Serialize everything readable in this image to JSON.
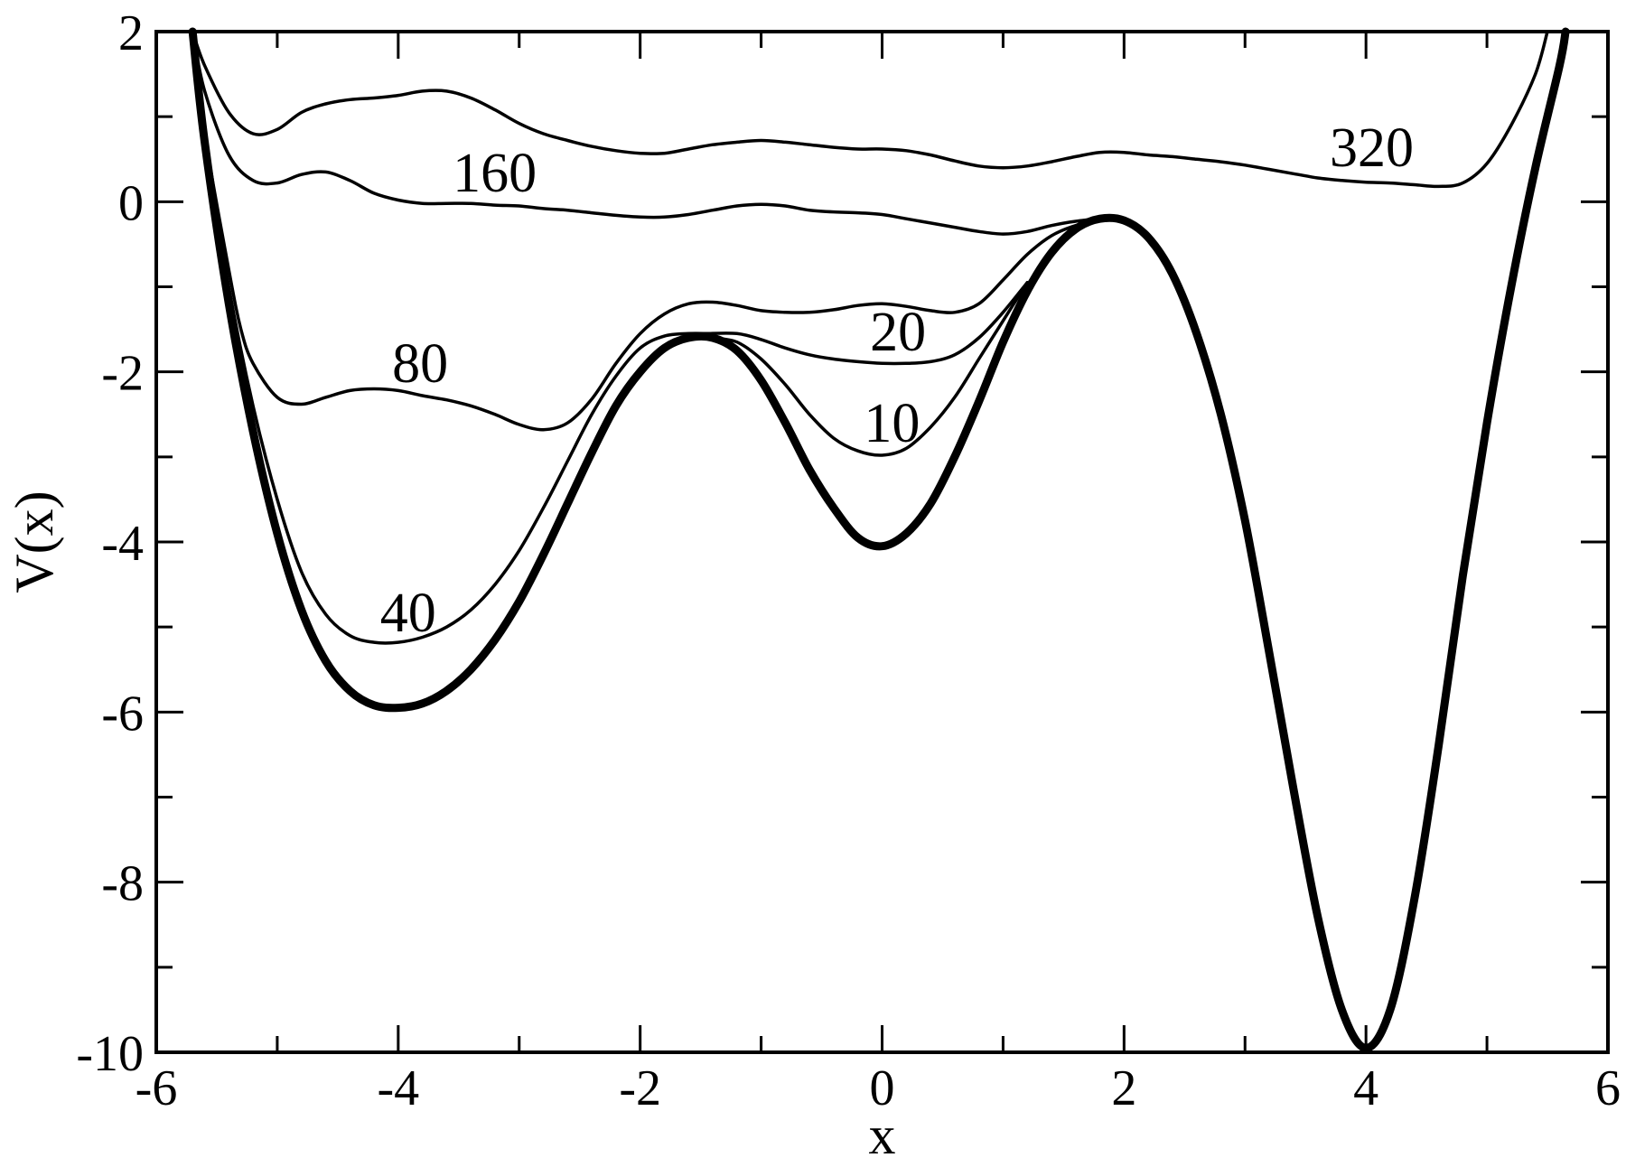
{
  "chart_data": {
    "type": "line",
    "title": "",
    "xlabel": "x",
    "ylabel": "V(x)",
    "xlim": [
      -6,
      6
    ],
    "ylim": [
      -10,
      2
    ],
    "x_ticks": [
      "-6",
      "-4",
      "-2",
      "0",
      "2",
      "4",
      "6"
    ],
    "y_ticks": [
      "2",
      "0",
      "-2",
      "-4",
      "-6",
      "-8",
      "-10"
    ],
    "grid": false,
    "legend": "none",
    "line_color": "#000000",
    "series": [
      {
        "name": "",
        "bold": true,
        "points": [
          [
            -5.7,
            2.0
          ],
          [
            -5.6,
            0.7
          ],
          [
            -5.4,
            -1.2
          ],
          [
            -5.2,
            -2.7
          ],
          [
            -5.0,
            -3.9
          ],
          [
            -4.8,
            -4.8
          ],
          [
            -4.6,
            -5.4
          ],
          [
            -4.4,
            -5.75
          ],
          [
            -4.2,
            -5.92
          ],
          [
            -4.0,
            -5.95
          ],
          [
            -3.8,
            -5.9
          ],
          [
            -3.6,
            -5.75
          ],
          [
            -3.4,
            -5.5
          ],
          [
            -3.2,
            -5.15
          ],
          [
            -3.0,
            -4.7
          ],
          [
            -2.8,
            -4.15
          ],
          [
            -2.6,
            -3.55
          ],
          [
            -2.4,
            -2.95
          ],
          [
            -2.2,
            -2.4
          ],
          [
            -2.0,
            -2.0
          ],
          [
            -1.8,
            -1.72
          ],
          [
            -1.6,
            -1.6
          ],
          [
            -1.4,
            -1.6
          ],
          [
            -1.2,
            -1.75
          ],
          [
            -1.0,
            -2.1
          ],
          [
            -0.8,
            -2.6
          ],
          [
            -0.6,
            -3.15
          ],
          [
            -0.4,
            -3.6
          ],
          [
            -0.2,
            -3.95
          ],
          [
            0.0,
            -4.05
          ],
          [
            0.2,
            -3.9
          ],
          [
            0.4,
            -3.55
          ],
          [
            0.6,
            -3.0
          ],
          [
            0.8,
            -2.35
          ],
          [
            1.0,
            -1.65
          ],
          [
            1.2,
            -1.05
          ],
          [
            1.4,
            -0.6
          ],
          [
            1.6,
            -0.32
          ],
          [
            1.8,
            -0.2
          ],
          [
            2.0,
            -0.22
          ],
          [
            2.2,
            -0.42
          ],
          [
            2.4,
            -0.85
          ],
          [
            2.6,
            -1.55
          ],
          [
            2.8,
            -2.5
          ],
          [
            3.0,
            -3.75
          ],
          [
            3.2,
            -5.3
          ],
          [
            3.4,
            -6.9
          ],
          [
            3.6,
            -8.4
          ],
          [
            3.8,
            -9.5
          ],
          [
            4.0,
            -9.95
          ],
          [
            4.2,
            -9.5
          ],
          [
            4.4,
            -8.2
          ],
          [
            4.6,
            -6.4
          ],
          [
            4.8,
            -4.4
          ],
          [
            5.0,
            -2.6
          ],
          [
            5.2,
            -1.0
          ],
          [
            5.4,
            0.4
          ],
          [
            5.6,
            1.6
          ],
          [
            5.65,
            2.0
          ]
        ]
      },
      {
        "name": "10",
        "bold": false,
        "points": [
          [
            -1.4,
            -1.6
          ],
          [
            -1.2,
            -1.65
          ],
          [
            -1.0,
            -1.85
          ],
          [
            -0.8,
            -2.15
          ],
          [
            -0.6,
            -2.5
          ],
          [
            -0.4,
            -2.78
          ],
          [
            -0.2,
            -2.93
          ],
          [
            0.0,
            -2.98
          ],
          [
            0.2,
            -2.9
          ],
          [
            0.4,
            -2.65
          ],
          [
            0.6,
            -2.3
          ],
          [
            0.8,
            -1.85
          ],
          [
            1.0,
            -1.4
          ],
          [
            1.2,
            -0.95
          ]
        ]
      },
      {
        "name": "20",
        "bold": false,
        "points": [
          [
            -1.45,
            -1.55
          ],
          [
            -1.2,
            -1.55
          ],
          [
            -1.0,
            -1.62
          ],
          [
            -0.8,
            -1.72
          ],
          [
            -0.6,
            -1.8
          ],
          [
            -0.4,
            -1.85
          ],
          [
            -0.2,
            -1.88
          ],
          [
            0.0,
            -1.9
          ],
          [
            0.2,
            -1.9
          ],
          [
            0.4,
            -1.88
          ],
          [
            0.6,
            -1.8
          ],
          [
            0.8,
            -1.6
          ],
          [
            1.0,
            -1.3
          ],
          [
            1.2,
            -0.95
          ]
        ]
      },
      {
        "name": "40",
        "bold": false,
        "points": [
          [
            -5.7,
            2.0
          ],
          [
            -5.6,
            0.8
          ],
          [
            -5.4,
            -1.0
          ],
          [
            -5.2,
            -2.4
          ],
          [
            -5.0,
            -3.5
          ],
          [
            -4.8,
            -4.35
          ],
          [
            -4.6,
            -4.85
          ],
          [
            -4.4,
            -5.1
          ],
          [
            -4.2,
            -5.18
          ],
          [
            -4.0,
            -5.18
          ],
          [
            -3.8,
            -5.12
          ],
          [
            -3.6,
            -5.0
          ],
          [
            -3.4,
            -4.8
          ],
          [
            -3.2,
            -4.5
          ],
          [
            -3.0,
            -4.1
          ],
          [
            -2.8,
            -3.6
          ],
          [
            -2.6,
            -3.05
          ],
          [
            -2.4,
            -2.5
          ],
          [
            -2.2,
            -2.05
          ],
          [
            -2.0,
            -1.72
          ],
          [
            -1.8,
            -1.58
          ],
          [
            -1.6,
            -1.55
          ],
          [
            -1.45,
            -1.55
          ]
        ]
      },
      {
        "name": "80",
        "bold": false,
        "points": [
          [
            -5.7,
            2.0
          ],
          [
            -5.6,
            0.8
          ],
          [
            -5.4,
            -0.8
          ],
          [
            -5.3,
            -1.5
          ],
          [
            -5.2,
            -1.9
          ],
          [
            -5.0,
            -2.3
          ],
          [
            -4.8,
            -2.38
          ],
          [
            -4.6,
            -2.3
          ],
          [
            -4.4,
            -2.22
          ],
          [
            -4.2,
            -2.2
          ],
          [
            -4.0,
            -2.22
          ],
          [
            -3.8,
            -2.28
          ],
          [
            -3.6,
            -2.33
          ],
          [
            -3.4,
            -2.4
          ],
          [
            -3.2,
            -2.5
          ],
          [
            -3.0,
            -2.62
          ],
          [
            -2.8,
            -2.68
          ],
          [
            -2.6,
            -2.6
          ],
          [
            -2.4,
            -2.32
          ],
          [
            -2.2,
            -1.9
          ],
          [
            -2.0,
            -1.55
          ],
          [
            -1.8,
            -1.32
          ],
          [
            -1.6,
            -1.2
          ],
          [
            -1.4,
            -1.18
          ],
          [
            -1.2,
            -1.22
          ],
          [
            -1.0,
            -1.28
          ],
          [
            -0.8,
            -1.3
          ],
          [
            -0.6,
            -1.3
          ],
          [
            -0.4,
            -1.27
          ],
          [
            -0.2,
            -1.22
          ],
          [
            0.0,
            -1.2
          ],
          [
            0.2,
            -1.23
          ],
          [
            0.4,
            -1.28
          ],
          [
            0.6,
            -1.3
          ],
          [
            0.8,
            -1.2
          ],
          [
            1.0,
            -0.92
          ],
          [
            1.2,
            -0.62
          ],
          [
            1.4,
            -0.4
          ],
          [
            1.6,
            -0.28
          ],
          [
            1.8,
            -0.22
          ]
        ]
      },
      {
        "name": "160",
        "bold": false,
        "points": [
          [
            -5.7,
            2.0
          ],
          [
            -5.6,
            1.3
          ],
          [
            -5.4,
            0.55
          ],
          [
            -5.2,
            0.25
          ],
          [
            -5.0,
            0.22
          ],
          [
            -4.8,
            0.32
          ],
          [
            -4.6,
            0.35
          ],
          [
            -4.4,
            0.25
          ],
          [
            -4.2,
            0.1
          ],
          [
            -4.0,
            0.02
          ],
          [
            -3.8,
            -0.02
          ],
          [
            -3.6,
            -0.02
          ],
          [
            -3.4,
            -0.02
          ],
          [
            -3.2,
            -0.04
          ],
          [
            -3.0,
            -0.05
          ],
          [
            -2.8,
            -0.08
          ],
          [
            -2.6,
            -0.1
          ],
          [
            -2.4,
            -0.13
          ],
          [
            -2.2,
            -0.16
          ],
          [
            -2.0,
            -0.18
          ],
          [
            -1.8,
            -0.18
          ],
          [
            -1.6,
            -0.15
          ],
          [
            -1.4,
            -0.1
          ],
          [
            -1.2,
            -0.05
          ],
          [
            -1.0,
            -0.03
          ],
          [
            -0.8,
            -0.05
          ],
          [
            -0.6,
            -0.1
          ],
          [
            -0.4,
            -0.12
          ],
          [
            -0.2,
            -0.13
          ],
          [
            0.0,
            -0.15
          ],
          [
            0.2,
            -0.2
          ],
          [
            0.4,
            -0.25
          ],
          [
            0.6,
            -0.3
          ],
          [
            0.8,
            -0.35
          ],
          [
            1.0,
            -0.38
          ],
          [
            1.2,
            -0.35
          ],
          [
            1.4,
            -0.28
          ],
          [
            1.6,
            -0.23
          ],
          [
            1.8,
            -0.2
          ]
        ]
      },
      {
        "name": "320",
        "bold": false,
        "points": [
          [
            -5.7,
            2.0
          ],
          [
            -5.6,
            1.6
          ],
          [
            -5.4,
            1.05
          ],
          [
            -5.2,
            0.8
          ],
          [
            -5.0,
            0.85
          ],
          [
            -4.8,
            1.05
          ],
          [
            -4.6,
            1.15
          ],
          [
            -4.4,
            1.2
          ],
          [
            -4.2,
            1.22
          ],
          [
            -4.0,
            1.25
          ],
          [
            -3.8,
            1.3
          ],
          [
            -3.6,
            1.3
          ],
          [
            -3.4,
            1.22
          ],
          [
            -3.2,
            1.08
          ],
          [
            -3.0,
            0.92
          ],
          [
            -2.8,
            0.8
          ],
          [
            -2.6,
            0.72
          ],
          [
            -2.4,
            0.65
          ],
          [
            -2.2,
            0.6
          ],
          [
            -2.0,
            0.57
          ],
          [
            -1.8,
            0.57
          ],
          [
            -1.6,
            0.62
          ],
          [
            -1.4,
            0.67
          ],
          [
            -1.2,
            0.7
          ],
          [
            -1.0,
            0.72
          ],
          [
            -0.8,
            0.7
          ],
          [
            -0.6,
            0.67
          ],
          [
            -0.4,
            0.64
          ],
          [
            -0.2,
            0.62
          ],
          [
            0.0,
            0.62
          ],
          [
            0.2,
            0.6
          ],
          [
            0.4,
            0.55
          ],
          [
            0.6,
            0.48
          ],
          [
            0.8,
            0.42
          ],
          [
            1.0,
            0.4
          ],
          [
            1.2,
            0.42
          ],
          [
            1.4,
            0.47
          ],
          [
            1.6,
            0.53
          ],
          [
            1.8,
            0.58
          ],
          [
            2.0,
            0.58
          ],
          [
            2.2,
            0.55
          ],
          [
            2.4,
            0.53
          ],
          [
            2.6,
            0.5
          ],
          [
            2.8,
            0.47
          ],
          [
            3.0,
            0.43
          ],
          [
            3.2,
            0.38
          ],
          [
            3.4,
            0.33
          ],
          [
            3.6,
            0.28
          ],
          [
            3.8,
            0.25
          ],
          [
            4.0,
            0.23
          ],
          [
            4.2,
            0.22
          ],
          [
            4.4,
            0.2
          ],
          [
            4.6,
            0.18
          ],
          [
            4.8,
            0.22
          ],
          [
            5.0,
            0.45
          ],
          [
            5.2,
            0.9
          ],
          [
            5.4,
            1.5
          ],
          [
            5.5,
            2.0
          ]
        ]
      }
    ],
    "curve_labels": [
      {
        "text": "160",
        "x": -3.55,
        "y": 0.12
      },
      {
        "text": "320",
        "x": 3.7,
        "y": 0.42
      },
      {
        "text": "80",
        "x": -4.05,
        "y": -2.12
      },
      {
        "text": "20",
        "x": -0.1,
        "y": -1.75
      },
      {
        "text": "10",
        "x": -0.15,
        "y": -2.82
      },
      {
        "text": "40",
        "x": -4.15,
        "y": -5.05
      }
    ]
  }
}
